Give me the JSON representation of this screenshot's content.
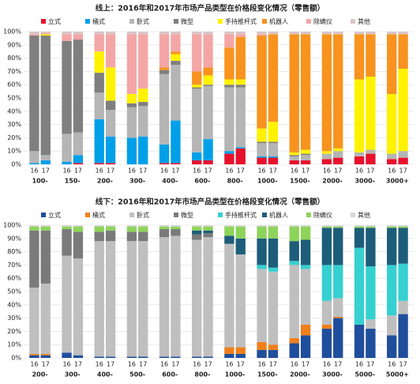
{
  "chart_data": [
    {
      "type": "bar",
      "stacked": true,
      "title": "线上：2016年和2017年市场产品类型在价格段变化情况（零售额）",
      "categories": [
        "16",
        "17",
        "16",
        "17",
        "16",
        "17",
        "16",
        "17",
        "16",
        "17",
        "16",
        "17",
        "16",
        "17",
        "16",
        "17",
        "16",
        "17",
        "16",
        "17",
        "16",
        "17",
        "16",
        "17"
      ],
      "groups": [
        "100-",
        "150-",
        "200-",
        "300-",
        "400-",
        "600-",
        "800-",
        "1000-",
        "1500-",
        "2000-",
        "3000-",
        "3000+"
      ],
      "ylim": [
        0,
        100
      ],
      "yticks": [
        {
          "value": 0,
          "label": "0%"
        },
        {
          "value": 10,
          "label": "10%"
        },
        {
          "value": 20,
          "label": "20%"
        },
        {
          "value": 30,
          "label": "30%"
        },
        {
          "value": 40,
          "label": "40%"
        },
        {
          "value": 50,
          "label": "50%"
        },
        {
          "value": 60,
          "label": "60%"
        },
        {
          "value": 70,
          "label": "70%"
        },
        {
          "value": 80,
          "label": "80%"
        },
        {
          "value": 90,
          "label": "90%"
        },
        {
          "value": 100,
          "label": "100%"
        }
      ],
      "grid": true,
      "series": [
        {
          "name": "立式",
          "color": "#e8112d",
          "values": [
            0,
            0,
            0,
            1,
            1,
            1,
            0,
            0,
            1,
            1,
            3,
            3,
            8,
            12,
            5,
            5,
            3,
            3,
            4,
            5,
            6,
            8,
            4,
            5
          ]
        },
        {
          "name": "桶式",
          "color": "#00a0e9",
          "values": [
            1,
            3,
            2,
            6,
            33,
            20,
            20,
            21,
            14,
            32,
            6,
            16,
            2,
            1,
            1,
            1,
            0,
            0,
            0,
            0,
            0,
            0,
            0,
            0
          ]
        },
        {
          "name": "卧式",
          "color": "#b5b5b5",
          "values": [
            9,
            4,
            21,
            17,
            20,
            20,
            23,
            23,
            53,
            42,
            48,
            40,
            48,
            45,
            10,
            10,
            3,
            4,
            4,
            5,
            3,
            3,
            4,
            5
          ]
        },
        {
          "name": "微型",
          "color": "#7f7f7f",
          "values": [
            87,
            90,
            70,
            70,
            15,
            7,
            3,
            3,
            3,
            3,
            1,
            1,
            2,
            2,
            1,
            1,
            1,
            1,
            0,
            0,
            0,
            0,
            0,
            0
          ]
        },
        {
          "name": "手持推杆式",
          "color": "#fff200",
          "values": [
            0,
            1,
            0,
            0,
            16,
            25,
            7,
            10,
            0,
            5,
            2,
            7,
            4,
            4,
            10,
            15,
            2,
            3,
            2,
            2,
            55,
            55,
            45,
            62
          ]
        },
        {
          "name": "机器人",
          "color": "#f7931e",
          "values": [
            0,
            0,
            0,
            0,
            0,
            0,
            0,
            0,
            2,
            2,
            10,
            6,
            24,
            32,
            70,
            66,
            89,
            87,
            88,
            86,
            34,
            32,
            45,
            26
          ]
        },
        {
          "name": "除螨仪",
          "color": "#f4a6a6",
          "values": [
            1,
            1,
            5,
            4,
            13,
            25,
            45,
            41,
            25,
            13,
            28,
            25,
            10,
            2,
            1,
            0,
            0,
            0,
            0,
            0,
            0,
            0,
            0,
            0
          ]
        },
        {
          "name": "其他",
          "color": "#d9c5c5",
          "values": [
            2,
            1,
            2,
            2,
            2,
            2,
            2,
            2,
            2,
            2,
            2,
            2,
            2,
            2,
            2,
            2,
            2,
            2,
            2,
            2,
            2,
            2,
            2,
            2
          ]
        }
      ]
    },
    {
      "type": "bar",
      "stacked": true,
      "title": "线下：2016年和2017年市场产品类型在价格段变化情况（零售额）",
      "categories": [
        "16",
        "17",
        "16",
        "17",
        "16",
        "17",
        "16",
        "17",
        "16",
        "17",
        "16",
        "17",
        "16",
        "17",
        "16",
        "17",
        "16",
        "17",
        "16",
        "17",
        "16",
        "17",
        "16",
        "17"
      ],
      "groups": [
        "200-",
        "300-",
        "400-",
        "500-",
        "600-",
        "800-",
        "1000-",
        "1500-",
        "2000-",
        "3000-",
        "5000-",
        "5000+"
      ],
      "ylim": [
        0,
        100
      ],
      "yticks": [
        {
          "value": 0,
          "label": "0%"
        },
        {
          "value": 10,
          "label": "10%"
        },
        {
          "value": 20,
          "label": "20%"
        },
        {
          "value": 30,
          "label": "30%"
        },
        {
          "value": 40,
          "label": "40%"
        },
        {
          "value": 50,
          "label": "50%"
        },
        {
          "value": 60,
          "label": "60%"
        },
        {
          "value": 70,
          "label": "70%"
        },
        {
          "value": 80,
          "label": "80%"
        },
        {
          "value": 90,
          "label": "90%"
        },
        {
          "value": 100,
          "label": "100%"
        }
      ],
      "grid": true,
      "series": [
        {
          "name": "立式",
          "color": "#1f4e9c",
          "values": [
            2,
            2,
            4,
            2,
            1,
            1,
            1,
            1,
            1,
            1,
            1,
            1,
            3,
            3,
            6,
            6,
            11,
            17,
            22,
            30,
            25,
            22,
            17,
            33
          ]
        },
        {
          "name": "桶式",
          "color": "#f07f1b",
          "values": [
            1,
            1,
            0,
            0,
            0,
            0,
            0,
            0,
            0,
            0,
            0,
            0,
            5,
            5,
            6,
            4,
            4,
            8,
            3,
            1,
            0,
            0,
            0,
            0
          ]
        },
        {
          "name": "卧式",
          "color": "#bfbfbf",
          "values": [
            50,
            53,
            73,
            73,
            87,
            87,
            87,
            87,
            90,
            91,
            88,
            90,
            78,
            70,
            55,
            55,
            55,
            42,
            18,
            14,
            0,
            7,
            15,
            10
          ]
        },
        {
          "name": "微型",
          "color": "#7a7a7a",
          "values": [
            43,
            40,
            20,
            20,
            7,
            8,
            7,
            7,
            6,
            5,
            4,
            3,
            0,
            0,
            0,
            0,
            0,
            0,
            0,
            0,
            0,
            0,
            0,
            0
          ]
        },
        {
          "name": "手持推杆式",
          "color": "#36d0d0",
          "values": [
            0,
            0,
            0,
            0,
            0,
            0,
            0,
            0,
            0,
            0,
            0,
            0,
            0,
            0,
            3,
            3,
            3,
            3,
            27,
            25,
            58,
            40,
            38,
            28
          ]
        },
        {
          "name": "机器人",
          "color": "#1d5d7a",
          "values": [
            0,
            0,
            0,
            0,
            0,
            0,
            0,
            0,
            0,
            0,
            3,
            2,
            6,
            12,
            20,
            22,
            15,
            19,
            28,
            28,
            15,
            29,
            28,
            27
          ]
        },
        {
          "name": "除螨仪",
          "color": "#8ed45a",
          "values": [
            3,
            3,
            2,
            4,
            4,
            3,
            4,
            4,
            2,
            2,
            3,
            3,
            7,
            9,
            9,
            9,
            11,
            10,
            1,
            1,
            1,
            1,
            1,
            1
          ]
        },
        {
          "name": "其他",
          "color": "#d6d6d6",
          "values": [
            1,
            1,
            1,
            1,
            1,
            1,
            1,
            1,
            1,
            1,
            1,
            1,
            1,
            1,
            1,
            1,
            1,
            1,
            1,
            1,
            1,
            1,
            1,
            1
          ]
        }
      ]
    }
  ]
}
